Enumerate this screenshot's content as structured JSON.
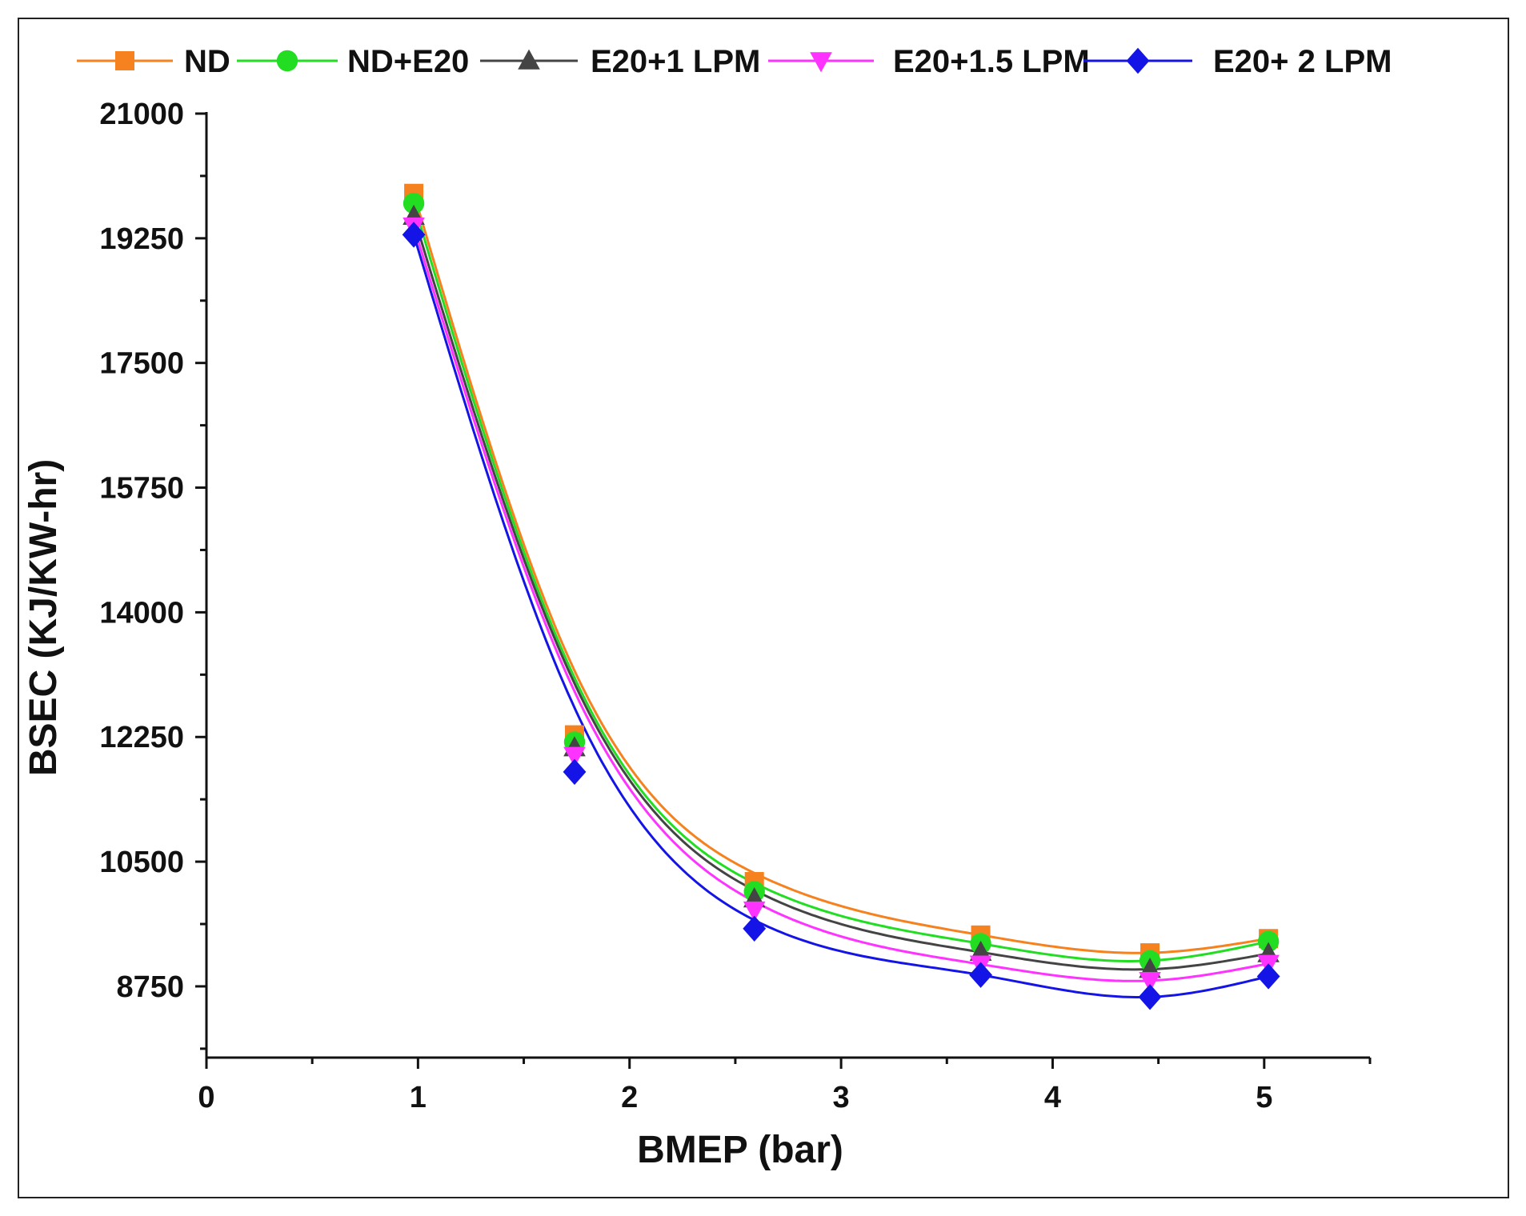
{
  "chart_data": {
    "type": "scatter",
    "title": "",
    "xlabel": "BMEP (bar)",
    "ylabel": "BSEC (KJ/KW-hr)",
    "xlim": [
      0,
      5.5
    ],
    "ylim": [
      7750,
      21000
    ],
    "x_ticks": [
      0,
      1,
      2,
      3,
      4,
      5
    ],
    "x_tick_labels": [
      "0",
      "1",
      "2",
      "3",
      "4",
      "5"
    ],
    "y_ticks": [
      8750,
      10500,
      12250,
      14000,
      15750,
      17500,
      19250,
      21000
    ],
    "y_tick_labels": [
      "8750",
      "10500",
      "12250",
      "14000",
      "15750",
      "17500",
      "19250",
      "21000"
    ],
    "legend_position": "top",
    "fit_lines": true,
    "x": [
      0.98,
      1.74,
      2.59,
      3.66,
      4.46,
      5.02
    ],
    "series": [
      {
        "name": "ND",
        "color": "#f5821f",
        "marker": "square",
        "values": [
          19880,
          12280,
          10220,
          9470,
          9220,
          9420
        ]
      },
      {
        "name": "ND+E20",
        "color": "#22dd22",
        "marker": "circle",
        "values": [
          19740,
          12180,
          10080,
          9350,
          9110,
          9380
        ]
      },
      {
        "name": "E20+1 LPM",
        "color": "#444444",
        "marker": "triangle-up",
        "values": [
          19560,
          12100,
          9980,
          9230,
          8990,
          9210
        ]
      },
      {
        "name": "E20+1.5 LPM",
        "color": "#ff33ff",
        "marker": "triangle-down",
        "values": [
          19420,
          11990,
          9820,
          9060,
          8830,
          9070
        ]
      },
      {
        "name": "E20+ 2 LPM",
        "color": "#1414e6",
        "marker": "diamond",
        "values": [
          19300,
          11760,
          9560,
          8910,
          8600,
          8890
        ]
      }
    ]
  }
}
